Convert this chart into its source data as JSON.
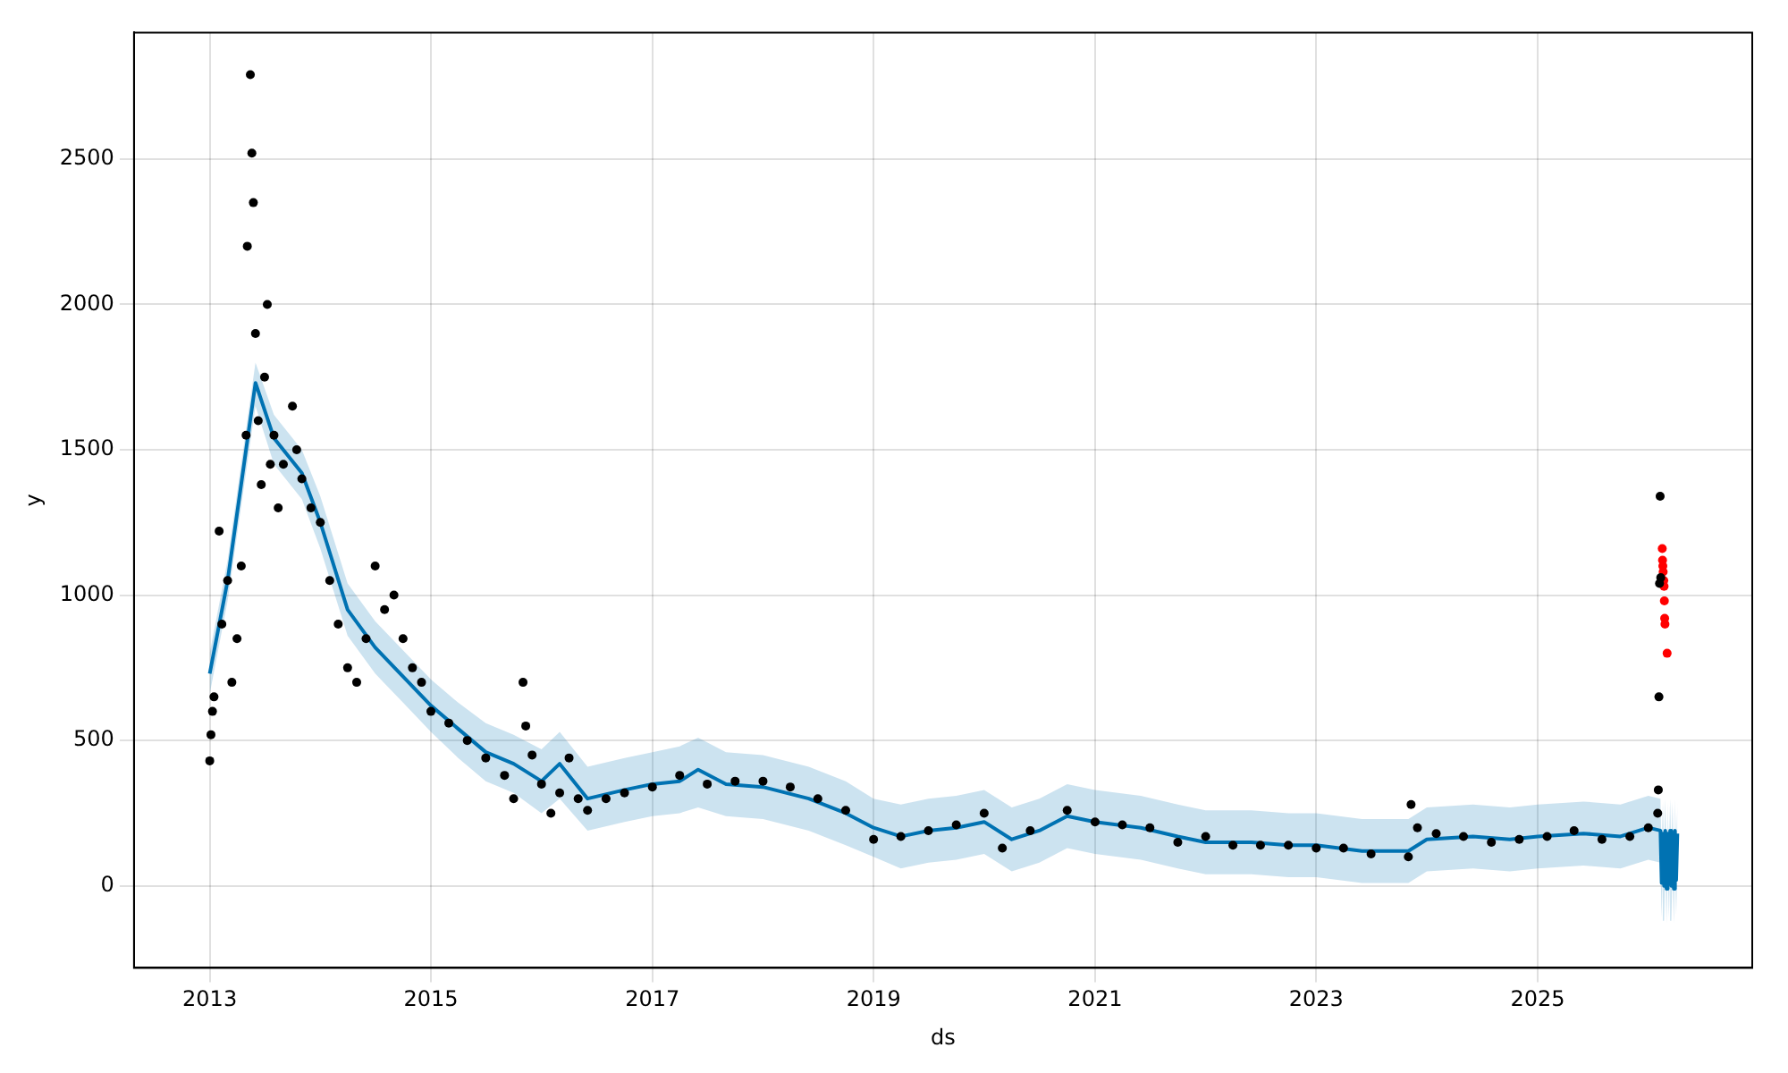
{
  "chart_data": {
    "type": "scatter",
    "xlabel": "ds",
    "ylabel": "y",
    "xlim": [
      "2012-04-26",
      "2026-12-10"
    ],
    "ylim": [
      -282,
      2935
    ],
    "xticks": [
      "2013",
      "2015",
      "2017",
      "2019",
      "2021",
      "2023",
      "2025"
    ],
    "yticks": [
      0,
      500,
      1000,
      1500,
      2000,
      2500
    ],
    "grid": true,
    "legend": false,
    "marker": "circle",
    "series": [
      {
        "type": "scatter",
        "color": "#000000",
        "x": [
          "2013-01",
          "2013-01-05",
          "2013-01-10",
          "2013-01-15",
          "2013-02",
          "2013-02-10",
          "2013-03",
          "2013-03-15",
          "2013-04",
          "2013-04-15",
          "2013-05",
          "2013-05-05",
          "2013-05-15",
          "2013-05-20",
          "2013-05-25",
          "2013-06",
          "2013-06-10",
          "2013-06-20",
          "2013-07",
          "2013-07-10",
          "2013-07-20",
          "2013-08",
          "2013-08-15",
          "2013-09",
          "2013-10",
          "2013-10-15",
          "2013-11",
          "2013-12",
          "2014-01",
          "2014-02",
          "2014-03",
          "2014-04",
          "2014-05",
          "2014-06",
          "2014-07",
          "2014-08",
          "2014-09",
          "2014-10",
          "2014-11",
          "2014-12",
          "2015-01",
          "2015-03",
          "2015-05",
          "2015-07",
          "2015-09",
          "2015-10",
          "2015-11",
          "2015-11-10",
          "2015-12",
          "2016-01",
          "2016-02",
          "2016-03",
          "2016-04",
          "2016-05",
          "2016-06",
          "2016-08",
          "2016-10",
          "2017-01",
          "2017-04",
          "2017-07",
          "2017-10",
          "2018-01",
          "2018-04",
          "2018-07",
          "2018-10",
          "2019-01",
          "2019-04",
          "2019-07",
          "2019-10",
          "2020-01",
          "2020-03",
          "2020-06",
          "2020-10",
          "2021-01",
          "2021-04",
          "2021-07",
          "2021-10",
          "2022-01",
          "2022-04",
          "2022-07",
          "2022-10",
          "2023-01",
          "2023-04",
          "2023-07",
          "2023-11",
          "2023-11-10",
          "2023-12",
          "2024-02",
          "2024-05",
          "2024-08",
          "2024-11",
          "2025-02",
          "2025-05",
          "2025-08",
          "2025-11",
          "2026-01",
          "2026-02",
          "2026-02-03",
          "2026-02-05",
          "2026-02-07",
          "2026-02-09",
          "2026-02-11"
        ],
        "values": [
          430,
          520,
          600,
          650,
          1220,
          900,
          1050,
          700,
          850,
          1100,
          1550,
          2200,
          2790,
          2520,
          2350,
          1900,
          1600,
          1380,
          1750,
          2000,
          1450,
          1550,
          1300,
          1450,
          1650,
          1500,
          1400,
          1300,
          1250,
          1050,
          900,
          750,
          700,
          850,
          1100,
          950,
          1000,
          850,
          750,
          700,
          600,
          560,
          500,
          440,
          380,
          300,
          700,
          550,
          450,
          350,
          250,
          320,
          440,
          300,
          260,
          300,
          320,
          340,
          380,
          350,
          360,
          360,
          340,
          300,
          260,
          160,
          170,
          190,
          210,
          250,
          130,
          190,
          260,
          220,
          210,
          200,
          150,
          170,
          140,
          140,
          140,
          130,
          130,
          110,
          100,
          280,
          200,
          180,
          170,
          150,
          160,
          170,
          190,
          160,
          170,
          200,
          250,
          330,
          650,
          1040,
          1340,
          1060
        ]
      },
      {
        "type": "scatter",
        "color": "#ff0000",
        "x": [
          "2026-02-16",
          "2026-02-17",
          "2026-02-18",
          "2026-02-19",
          "2026-02-21",
          "2026-02-22",
          "2026-02-23",
          "2026-02-24",
          "2026-02-25",
          "2026-03-04"
        ],
        "values": [
          1160,
          1120,
          1100,
          1080,
          1050,
          1030,
          980,
          920,
          900,
          800
        ]
      },
      {
        "type": "line",
        "color": "#0072b2",
        "marker": "none",
        "x": [
          "2013-01",
          "2013-03",
          "2013-06",
          "2013-08",
          "2013-11",
          "2014-01",
          "2014-04",
          "2014-07",
          "2014-10",
          "2015-01",
          "2015-04",
          "2015-07",
          "2015-10",
          "2016-01",
          "2016-03",
          "2016-06",
          "2016-10",
          "2017-01",
          "2017-04",
          "2017-06",
          "2017-09",
          "2018-01",
          "2018-06",
          "2018-10",
          "2019-01",
          "2019-04",
          "2019-07",
          "2019-10",
          "2020-01",
          "2020-04",
          "2020-07",
          "2020-10",
          "2021-01",
          "2021-06",
          "2021-10",
          "2022-01",
          "2022-06",
          "2022-10",
          "2023-01",
          "2023-06",
          "2023-11",
          "2024-01",
          "2024-06",
          "2024-10",
          "2025-01",
          "2025-06",
          "2025-10",
          "2026-01",
          "2026-02-10",
          "2026-02-14",
          "2026-02-18",
          "2026-02-22",
          "2026-02-26",
          "2026-03-02",
          "2026-03-06",
          "2026-03-10",
          "2026-03-14",
          "2026-03-18",
          "2026-03-22",
          "2026-03-26",
          "2026-03-30",
          "2026-04-03",
          "2026-04-07"
        ],
        "values": [
          730,
          1050,
          1730,
          1540,
          1420,
          1250,
          950,
          820,
          720,
          620,
          540,
          460,
          420,
          360,
          420,
          300,
          330,
          350,
          360,
          400,
          350,
          340,
          300,
          250,
          200,
          170,
          190,
          200,
          220,
          160,
          190,
          240,
          220,
          200,
          170,
          150,
          150,
          140,
          140,
          120,
          120,
          160,
          170,
          160,
          170,
          180,
          170,
          200,
          190,
          10,
          180,
          0,
          190,
          -10,
          180,
          10,
          190,
          0,
          180,
          -10,
          190,
          20,
          180
        ],
        "lower": [
          660,
          980,
          1650,
          1450,
          1330,
          1160,
          860,
          730,
          630,
          530,
          440,
          360,
          320,
          250,
          300,
          190,
          220,
          240,
          250,
          270,
          240,
          230,
          190,
          140,
          100,
          60,
          80,
          90,
          110,
          50,
          80,
          130,
          110,
          90,
          60,
          40,
          40,
          30,
          30,
          10,
          10,
          50,
          60,
          50,
          60,
          70,
          60,
          90,
          80,
          -110,
          60,
          -120,
          70,
          -130,
          60,
          -110,
          70,
          -120,
          60,
          -130,
          70,
          -100,
          70
        ],
        "upper": [
          800,
          1120,
          1800,
          1620,
          1500,
          1340,
          1040,
          910,
          810,
          710,
          630,
          560,
          520,
          470,
          530,
          410,
          440,
          460,
          480,
          510,
          460,
          450,
          410,
          360,
          300,
          280,
          300,
          310,
          330,
          270,
          300,
          350,
          330,
          310,
          280,
          260,
          260,
          250,
          250,
          230,
          230,
          270,
          280,
          270,
          280,
          290,
          280,
          310,
          300,
          120,
          290,
          120,
          300,
          110,
          290,
          120,
          300,
          120,
          290,
          110,
          300,
          130,
          290
        ]
      }
    ]
  }
}
